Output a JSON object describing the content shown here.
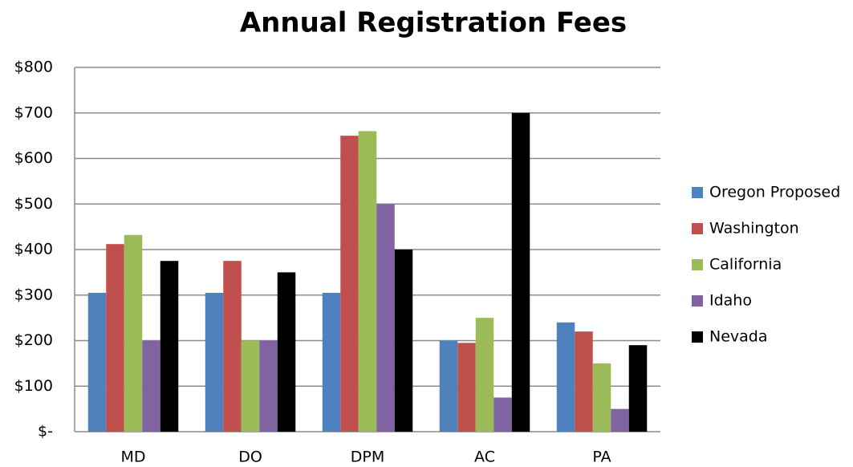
{
  "chart_data": {
    "type": "bar",
    "title": "Annual Registration Fees",
    "categories": [
      "MD",
      "DO",
      "DPM",
      "AC",
      "PA"
    ],
    "series": [
      {
        "name": "Oregon Proposed",
        "color": "#4f81bd",
        "values": [
          305,
          305,
          305,
          200,
          240
        ]
      },
      {
        "name": "Washington",
        "color": "#c0504d",
        "values": [
          412,
          375,
          650,
          195,
          220
        ]
      },
      {
        "name": "California",
        "color": "#9bbb59",
        "values": [
          432,
          200,
          660,
          250,
          150
        ]
      },
      {
        "name": "Idaho",
        "color": "#8064a2",
        "values": [
          200,
          200,
          500,
          75,
          50
        ]
      },
      {
        "name": "Nevada",
        "color": "#000000",
        "values": [
          375,
          350,
          400,
          700,
          190
        ]
      }
    ],
    "ylim": [
      0,
      800
    ],
    "yticks": [
      {
        "value": 0,
        "label": "$-"
      },
      {
        "value": 100,
        "label": "$100"
      },
      {
        "value": 200,
        "label": "$200"
      },
      {
        "value": 300,
        "label": "$300"
      },
      {
        "value": 400,
        "label": "$400"
      },
      {
        "value": 500,
        "label": "$500"
      },
      {
        "value": 600,
        "label": "$600"
      },
      {
        "value": 700,
        "label": "$700"
      },
      {
        "value": 800,
        "label": "$800"
      }
    ],
    "grid": true,
    "legend": "right"
  }
}
